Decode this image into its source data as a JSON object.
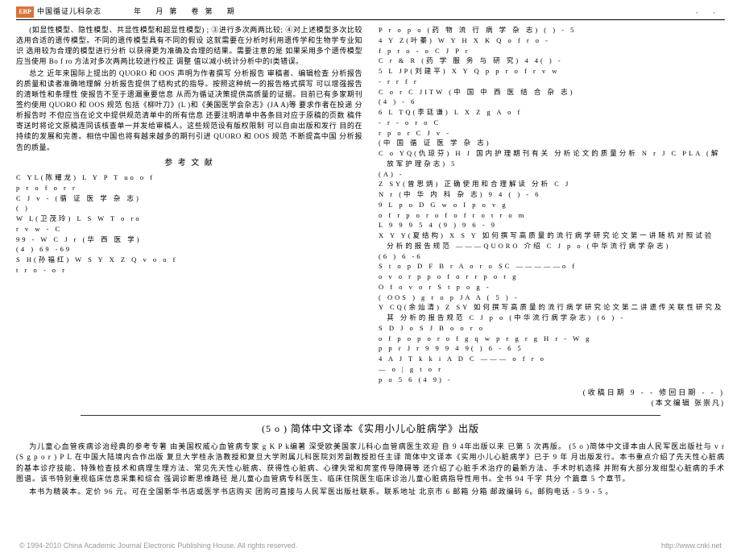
{
  "header": {
    "logo_text": "EBP",
    "journal": "中国循证儿科杂志",
    "issue": "年 月第 卷第 期",
    "page_marker": "· ·"
  },
  "left_col": {
    "main_para": "(如显性模型、隐性模型、共显性模型和超显性模型) ; ③进行多次两两比较; ④对上述模型多次比较  选用合适的遗传模型。不同的遗传模型具有不同的假设  这就需要在分析时利用遗传学和生物学专业知识  选用较为合理的模型进行分析  以获得更为准确及合理的结果。需要注意的是  如果采用多个遗传模型  应当使用 Bo f ro  方法对多次两两比较进行校正  调整   值以减小统计分析中的Ⅰ类错误。",
    "summary_para": "总之  近年来国际上提出的 QUORO   和   OOS 声明为作者撰写     分析报告  审稿者、编辑检查     分析报告的质量和读者准确地理解     分析报告提供了结构式的指导。按照这种统一的报告格式撰写  可以增强报告的清晰性和条理性  使报告不至于遗漏重要信息  从而为循证决策提供高质量的证据。目前已有多家期刊签约使用 QUORO   和   OOS  规范  包括《柳叶刀》(L     )和《美国医学会杂志》(JA   A)等  要求作者在投递     分析报告时  不但应当在论文中提供规范清单中的所有信息  还要注明清单中各条目对应于原稿的页数  稿件寄送时将论文原稿连同该核查单一并发给审稿人。这些规范设有版权限制  可以自由出版和发行  目的在持续的发展和完善。相信中国也将有越来越多的期刊引进 QUORO   和   OOS 规范  不断提高中国     分析报告的质量。",
    "ref_heading": "参 考 文 献",
    "refs": [
      "  C    YL(陈耀龙)  L  Y  P  T     uo o f",
      "   p r       o  f   o  r   r       ",
      "C    J  v -          (循 证 医 学 杂 志)        ",
      "       (   )",
      "  W    L(卫茂玲)  L    S  W         T  o ro",
      "           r  v  w -        C         ",
      "  99 -   W      C     J r  (华 西 医 学)",
      "  (4 )   69 -69  ",
      "  S    H(孙福红)  W    S  Y  X    Z          Q        v     o o f",
      "          t r o -    o r     "
    ]
  },
  "right_col": {
    "refs": [
      "P    r    o    p              o (药 物 流 行 病 学 杂 志)          (  )     - 5",
      "4 Y    Z(叶蓁)    W    Y  H    X  K        Q        o f r       o  -",
      "     f          p  r    o - o      C  J  P r",
      "C  r  &  R    (药 学 服 务 与 研 究)        4 4(  )     -    ",
      "5 L    JP(刘建平)  X    Y  Q            p p r       o f            r  v  w",
      "   -                 r  r       f r      ",
      "C         o r              C JITW  (中 国 中 西 医 结 合 杂 志)       ",
      "    (4 )      - 6",
      "6 L    TQ(李廷谦)  L    X    Z       g                 A      o f",
      "       -             r  -   o r  o    C",
      "       r     p    o r       C   J  v  -",
      "   (中 国 循 证 医 学 杂 志)                 ",
      "  C  o  YQ(仇琼芬)  H    J  国内护理期刊有关        分析论文的质量分析 N r  J C     PLA (解放军护理杂志)        5",
      "    (A)       -  ",
      "  Z     SY(曾思炳)  正确使用和合理解读          分析 C    J",
      "N r (中 华 内 科 杂 志)            9 4 (   )       -  6",
      "9  L    p  o          D  G           w  o          I  p o v  g",
      "o f r  p  o r       o f           o f  r  o    t r o  m      ",
      "L             9 9 9    5 4 (9     )    9 6 - 9     ",
      "  X    Y Y(夏结构)  X    S Y  如何撰写高质量的流行病学研究论文第一讲随机对照试验        分析的报告规范 ———QUORO  介绍  C     J  p    o (中华流行病学杂志)       ",
      "     (6 )    6  -6        ",
      "  S  t o  p D   F          B r        A           o r o      SC          —————o f",
      "o  v    o r                   p    p  o   f o r  r p o r     g",
      "                      O      f  o  v    o r      S  t            p        o  g  -",
      "  (   OOS )  g r o  p  JA   A                 (    5 )            - ",
      "  Y     CQ(余灿清)  Z     SY  如何撰写高质量的流行病学研究论文第二讲遗传关联性研究及其         分析的报告规范  C     J  p    o (中华流行病学杂志)               (6 )     -",
      "  S    D J     o         S J    B           o  o    r o",
      "o f p  o  p o r           o f          g  q      w    p r    g  r    g           H  r - W      g",
      "   p    p r       J       r        9 9 9    4 9(  )    6  - 6 5",
      "4 A    J    T  k  k  i                  A    D  C    ———           o f r  o",
      "— o    |  g         t   o r",
      "                   p o  5 6 (4 9)   -"
    ],
    "receipt": "(收稿日期       9 -    -      修回日期        -    -    )",
    "editor": "(本文编辑  张崇凡)"
  },
  "book": {
    "title": "(5         o ) 简体中文译本《实用小儿心脏病学》出版",
    "para1": "为儿童心血管疾病诊治经典的参考专著  由美国权威心血管病专家           g  K   P   k编著  深受欧美国家儿科心血管病医生欢迎  自   9 4年出版以来  已第  5 次再版。        (5    o )简体中文译本由人民军医出版社与      v  r  (S    g  p o r )  P    L    在中国大陆境内合作出版  复旦大学桂永浩教授和复旦大学附属儿科医院刘芳副教授担任主译  简体中文译本《实用小儿心脏病学》已于       9 年  月出版发行。本书重点介绍了先天性心脏病的基本诊疗技能、特殊检查技术和病理生理方法、常见先天性心脏病、获得性心脏病、心律失常和房室传导障碍等  还介绍了心脏手术治疗的最新方法、手术时机选择  并附有大部分发绀型心脏病的手术图谱。该书特别重视临床信息采集和综合  强调诊断思维路径  是儿童心血管病专科医生、临床住院医生临床诊治儿童心脏病指导性用书。全书  94 千字  共分   个篇章    5 个章节。",
    "para2": "本书为精装本。定价       96 元。可在全国新华书店或医学书店购买  团购可直接与人民军医出版社联系。联系地址  北京市         6 邮箱       分箱  邮政编码           6。邮购电话       - 5 9        - 5         。"
  },
  "footer": {
    "left": "© 1994-2010 China Academic Journal Electronic Publishing House. All rights reserved.",
    "right": "http://www.cnki.net"
  }
}
